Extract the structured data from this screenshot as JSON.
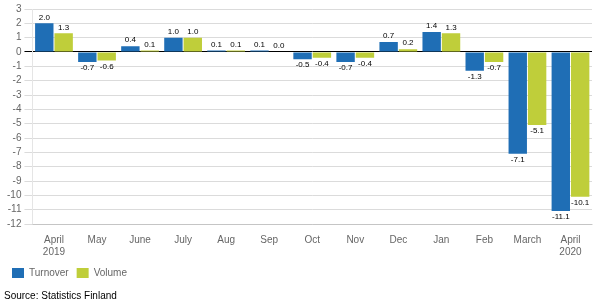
{
  "chart_data": {
    "type": "bar",
    "categories": [
      "April\n2019",
      "May",
      "June",
      "July",
      "Aug",
      "Sep",
      "Oct",
      "Nov",
      "Dec",
      "Jan",
      "Feb",
      "March",
      "April\n2020"
    ],
    "series": [
      {
        "name": "Turnover",
        "color": "#1F6EB5",
        "values": [
          2.0,
          -0.7,
          0.4,
          1.0,
          0.1,
          0.1,
          -0.5,
          -0.7,
          0.7,
          1.4,
          -1.3,
          -7.1,
          -11.1
        ],
        "value_labels": [
          "2.0",
          "-0.7",
          "0.4",
          "1.0",
          "0.1",
          "0.1",
          "-0.5",
          "-0.7",
          "0.7",
          "1.4",
          "-1.3",
          "-7.1",
          "-11.1"
        ]
      },
      {
        "name": "Volume",
        "color": "#BFCE3A",
        "values": [
          1.3,
          -0.6,
          0.1,
          1.0,
          0.1,
          0.0,
          -0.4,
          -0.4,
          0.2,
          1.3,
          -0.7,
          -5.1,
          -10.1
        ],
        "value_labels": [
          "1.3",
          "-0.6",
          "0.1",
          "1.0",
          "0.1",
          "0.0",
          "-0.4",
          "-0.4",
          "0.2",
          "1.3",
          "-0.7",
          "-5.1",
          "-10.1"
        ]
      }
    ],
    "ylim": [
      -12,
      3
    ],
    "yticks": [
      3,
      2,
      1,
      0,
      -1,
      -2,
      -3,
      -4,
      -5,
      -6,
      -7,
      -8,
      -9,
      -10,
      -11,
      -12
    ],
    "grid": true,
    "legend": "lower left",
    "data_labels": true,
    "annotations": [
      "Source: Statistics Finland"
    ]
  }
}
